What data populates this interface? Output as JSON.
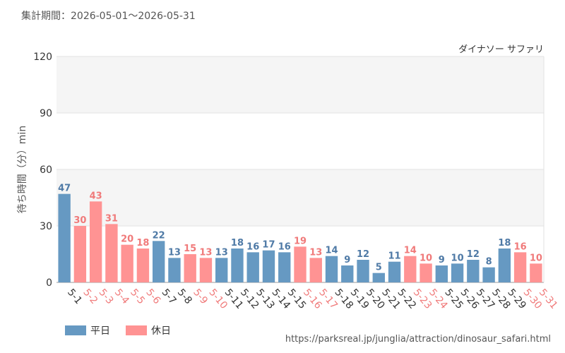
{
  "header": {
    "period": "集計期間：2026-05-01〜2026-05-31"
  },
  "footer": {
    "source_url": "https://parksreal.jp/junglia/attraction/dinosaur_safari.html"
  },
  "colors": {
    "weekday": "#6699c2",
    "holiday": "#ff9393",
    "weekday_text": "#4f7aa6",
    "holiday_text": "#f07a7a",
    "band": "#f5f5f5",
    "grid": "#e2e2e2"
  },
  "chart_data": {
    "type": "bar",
    "title": "ダイナソー サファリ",
    "xlabel": "",
    "ylabel": "待ち時間（分）min",
    "ylim": [
      0,
      120
    ],
    "yticks": [
      0,
      30,
      60,
      90,
      120
    ],
    "grid": true,
    "legend_position": "bottom-left",
    "legend": [
      {
        "key": "weekday",
        "label": "平日"
      },
      {
        "key": "holiday",
        "label": "休日"
      }
    ],
    "categories": [
      "5-1",
      "5-2",
      "5-3",
      "5-4",
      "5-5",
      "5-6",
      "5-7",
      "5-8",
      "5-9",
      "5-10",
      "5-11",
      "5-12",
      "5-13",
      "5-14",
      "5-15",
      "5-16",
      "5-17",
      "5-18",
      "5-19",
      "5-20",
      "5-21",
      "5-22",
      "5-23",
      "5-24",
      "5-25",
      "5-26",
      "5-27",
      "5-28",
      "5-29",
      "5-30",
      "5-31"
    ],
    "values": [
      47,
      30,
      43,
      31,
      20,
      18,
      22,
      13,
      15,
      13,
      13,
      18,
      16,
      17,
      16,
      19,
      13,
      14,
      9,
      12,
      5,
      11,
      14,
      10,
      9,
      10,
      12,
      8,
      18,
      16,
      10
    ],
    "day_type": [
      "weekday",
      "holiday",
      "holiday",
      "holiday",
      "holiday",
      "holiday",
      "weekday",
      "weekday",
      "holiday",
      "holiday",
      "weekday",
      "weekday",
      "weekday",
      "weekday",
      "weekday",
      "holiday",
      "holiday",
      "weekday",
      "weekday",
      "weekday",
      "weekday",
      "weekday",
      "holiday",
      "holiday",
      "weekday",
      "weekday",
      "weekday",
      "weekday",
      "weekday",
      "holiday",
      "holiday"
    ]
  }
}
